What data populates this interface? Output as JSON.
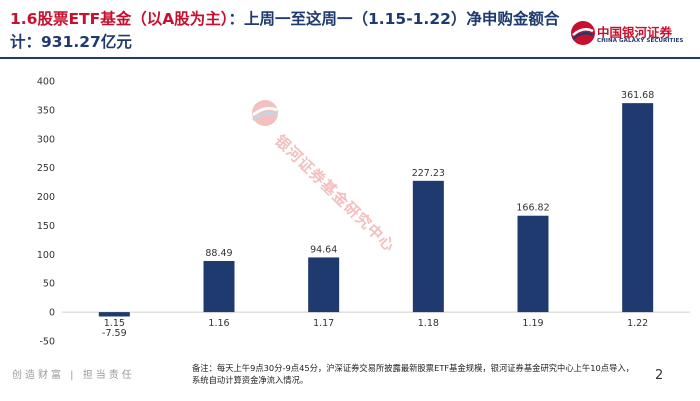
{
  "header": {
    "title_red": "1.6股票ETF基金（以A股为主）",
    "title_blue": "：上周一至这周一（1.15-1.22）净申购金额合计：931.27亿元"
  },
  "logo": {
    "name_cn": "中国银河证券",
    "name_en": "CHINA GALAXY SECURITIES"
  },
  "watermark": {
    "text": "银河证券基金研究中心"
  },
  "footer": {
    "slogan": "创造财富 | 担当责任",
    "note": "备注：每天上午9点30分-9点45分，沪深证券交易所披露最新股票ETF基金规模，银河证券基金研究中心上午10点导入，系统自动计算资金净流入情况。",
    "page": "2"
  },
  "colors": {
    "bar": "#1f3a6e",
    "title_red": "#c8102e",
    "title_blue": "#1f3a6e"
  },
  "chart_data": {
    "type": "bar",
    "title": "",
    "xlabel": "",
    "ylabel": "",
    "categories": [
      "1.15",
      "1.16",
      "1.17",
      "1.18",
      "1.19",
      "1.22"
    ],
    "values": [
      -7.59,
      88.49,
      94.64,
      227.23,
      166.82,
      361.68
    ],
    "value_labels": [
      "-7.59",
      "88.49",
      "94.64",
      "227.23",
      "166.82",
      "361.68"
    ],
    "ylim": [
      -50,
      400
    ],
    "yticks": [
      -50,
      0,
      50,
      100,
      150,
      200,
      250,
      300,
      350,
      400
    ],
    "grid": false,
    "legend": "none"
  }
}
